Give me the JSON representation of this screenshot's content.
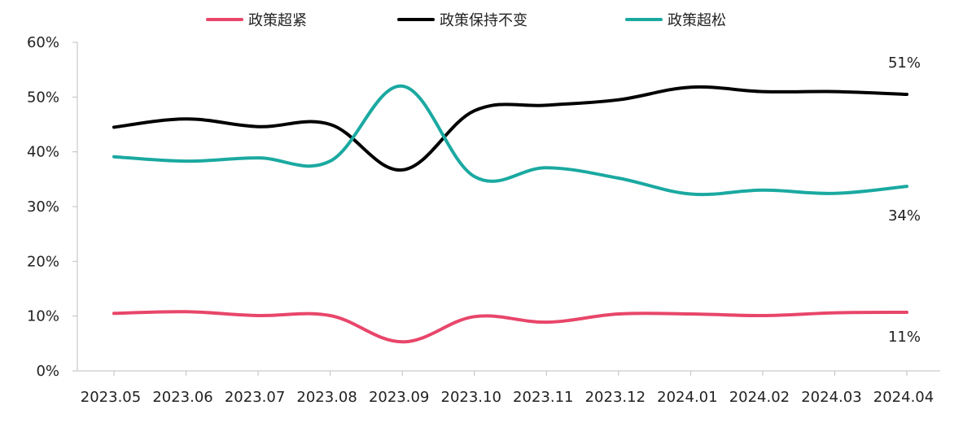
{
  "chart_data": {
    "type": "line",
    "categories": [
      "2023.05",
      "2023.06",
      "2023.07",
      "2023.08",
      "2023.09",
      "2023.10",
      "2023.11",
      "2023.12",
      "2024.01",
      "2024.02",
      "2024.03",
      "2024.04"
    ],
    "ylim": [
      0,
      60
    ],
    "yticks": [
      "0%",
      "10%",
      "20%",
      "30%",
      "40%",
      "50%",
      "60%"
    ],
    "grid": false,
    "legend_position": "top-center",
    "smooth": true,
    "series": [
      {
        "name": "政策超紧",
        "color": "#e8466a",
        "values": [
          10.5,
          10.8,
          10.1,
          10.1,
          5.3,
          9.9,
          8.9,
          10.4,
          10.4,
          10.1,
          10.6,
          10.7
        ],
        "end_label": "11%"
      },
      {
        "name": "政策保持不变",
        "color": "#000000",
        "values": [
          44.5,
          46.0,
          44.6,
          45.0,
          36.7,
          47.5,
          48.5,
          49.5,
          51.8,
          51.0,
          51.0,
          50.5
        ],
        "end_label": "51%"
      },
      {
        "name": "政策超松",
        "color": "#1aa9a1",
        "values": [
          39.1,
          38.3,
          38.9,
          38.3,
          52.0,
          35.5,
          37.1,
          35.2,
          32.3,
          33.0,
          32.4,
          33.7
        ],
        "end_label": "34%"
      }
    ]
  }
}
